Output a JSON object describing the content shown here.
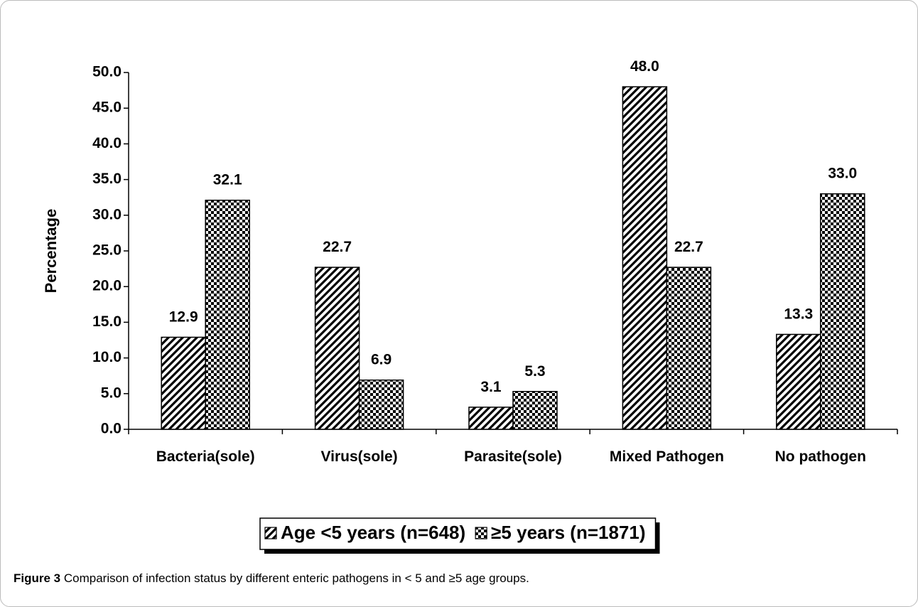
{
  "chart_data": {
    "type": "bar",
    "y_label": "Percentage",
    "categories": [
      "Bacteria(sole)",
      "Virus(sole)",
      "Parasite(sole)",
      "Mixed Pathogen",
      "No pathogen"
    ],
    "series": [
      {
        "name": "Age <5 years (n=648)",
        "color": "#000000",
        "pattern": "diagonal",
        "values": [
          12.9,
          22.7,
          3.1,
          48.0,
          13.3
        ],
        "value_labels": [
          "12.9",
          "22.7",
          "3.1",
          "48.0",
          "13.3"
        ]
      },
      {
        "name": "≥5 years (n=1871)",
        "color": "#000000",
        "pattern": "checker",
        "values": [
          32.1,
          6.9,
          5.3,
          22.7,
          33.0
        ],
        "value_labels": [
          "32.1",
          "6.9",
          "5.3",
          "22.7",
          "33.0"
        ]
      }
    ],
    "ylim": [
      0,
      50
    ],
    "yticks": [
      {
        "value": 0,
        "label": "0.0"
      },
      {
        "value": 5,
        "label": "5.0"
      },
      {
        "value": 10,
        "label": "10.0"
      },
      {
        "value": 15,
        "label": "15.0"
      },
      {
        "value": 20,
        "label": "20.0"
      },
      {
        "value": 25,
        "label": "25.0"
      },
      {
        "value": 30,
        "label": "30.0"
      },
      {
        "value": 35,
        "label": "35.0"
      },
      {
        "value": 40,
        "label": "40.0"
      },
      {
        "value": 45,
        "label": "45.0"
      },
      {
        "value": 50,
        "label": "50.0"
      }
    ],
    "legend": "bottom",
    "caption_label": "Figure 3",
    "caption_text": "Comparison of infection status by different enteric pathogens in < 5 and ≥5 age groups."
  }
}
